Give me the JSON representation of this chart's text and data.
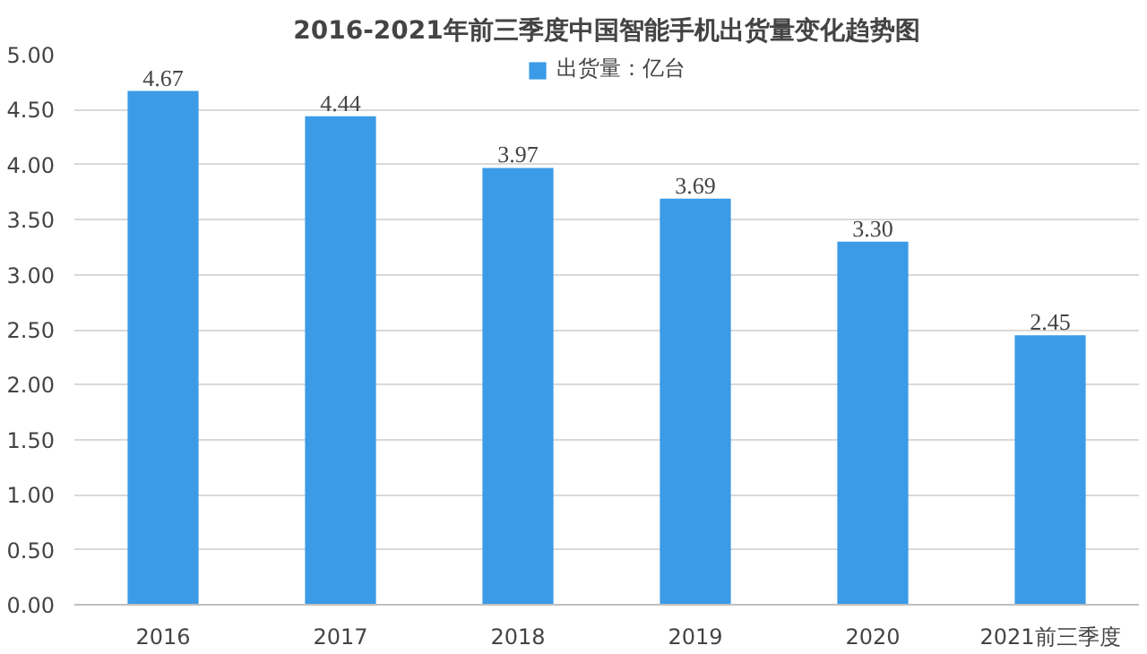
{
  "chart_data": {
    "type": "bar",
    "title": "2016-2021年前三季度中国智能手机出货量变化趋势图",
    "categories": [
      "2016",
      "2017",
      "2018",
      "2019",
      "2020",
      "2021前三季度"
    ],
    "series": [
      {
        "name": "出货量：亿台",
        "color": "#3b9be6",
        "values": [
          4.67,
          4.44,
          3.97,
          3.69,
          3.3,
          2.45
        ],
        "value_labels": [
          "4.67",
          "4.44",
          "3.97",
          "3.69",
          "3.30",
          "2.45"
        ]
      }
    ],
    "ylim": [
      0,
      5
    ],
    "yticks": [
      {
        "value": 0,
        "label": "0.00"
      },
      {
        "value": 0.5,
        "label": "0.50"
      },
      {
        "value": 1,
        "label": "1.00"
      },
      {
        "value": 1.5,
        "label": "1.50"
      },
      {
        "value": 2,
        "label": "2.00"
      },
      {
        "value": 2.5,
        "label": "2.50"
      },
      {
        "value": 3,
        "label": "3.00"
      },
      {
        "value": 3.5,
        "label": "3.50"
      },
      {
        "value": 4,
        "label": "4.00"
      },
      {
        "value": 4.5,
        "label": "4.50"
      },
      {
        "value": 5,
        "label": "5.00"
      }
    ],
    "grid": "y",
    "legend": "top"
  }
}
